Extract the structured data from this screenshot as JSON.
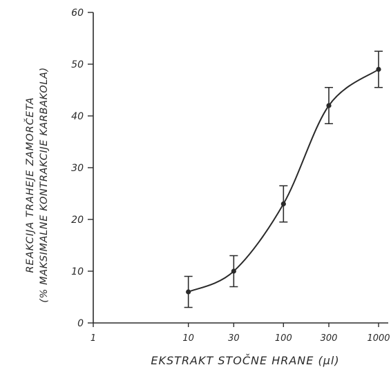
{
  "chart_data": {
    "type": "line",
    "xlabel": "EKSTRAKT STOČNE HRANE (μl)",
    "ylabel_line1": "REAKCIJA TRAHEJE ZAMORČETA",
    "ylabel_line2": "(% MAKSIMALNE KONTRAKCIJE KARBAKOLA)",
    "x_scale": "log",
    "xlim": [
      1,
      1000
    ],
    "ylim": [
      0,
      60
    ],
    "x_tick_labels": [
      "1",
      "10",
      "30",
      "100",
      "300",
      "1000"
    ],
    "x_ticks": [
      1,
      10,
      30,
      100,
      300,
      1000
    ],
    "y_ticks": [
      0,
      10,
      20,
      30,
      40,
      50,
      60
    ],
    "y_tick_labels": [
      "0",
      "10",
      "20",
      "30",
      "40",
      "50",
      "60"
    ],
    "series": [
      {
        "x": [
          10,
          30,
          100,
          300,
          1000
        ],
        "y": [
          6,
          10,
          23,
          42,
          49
        ],
        "error": [
          3,
          3,
          3.5,
          3.5,
          3.5
        ]
      }
    ]
  }
}
